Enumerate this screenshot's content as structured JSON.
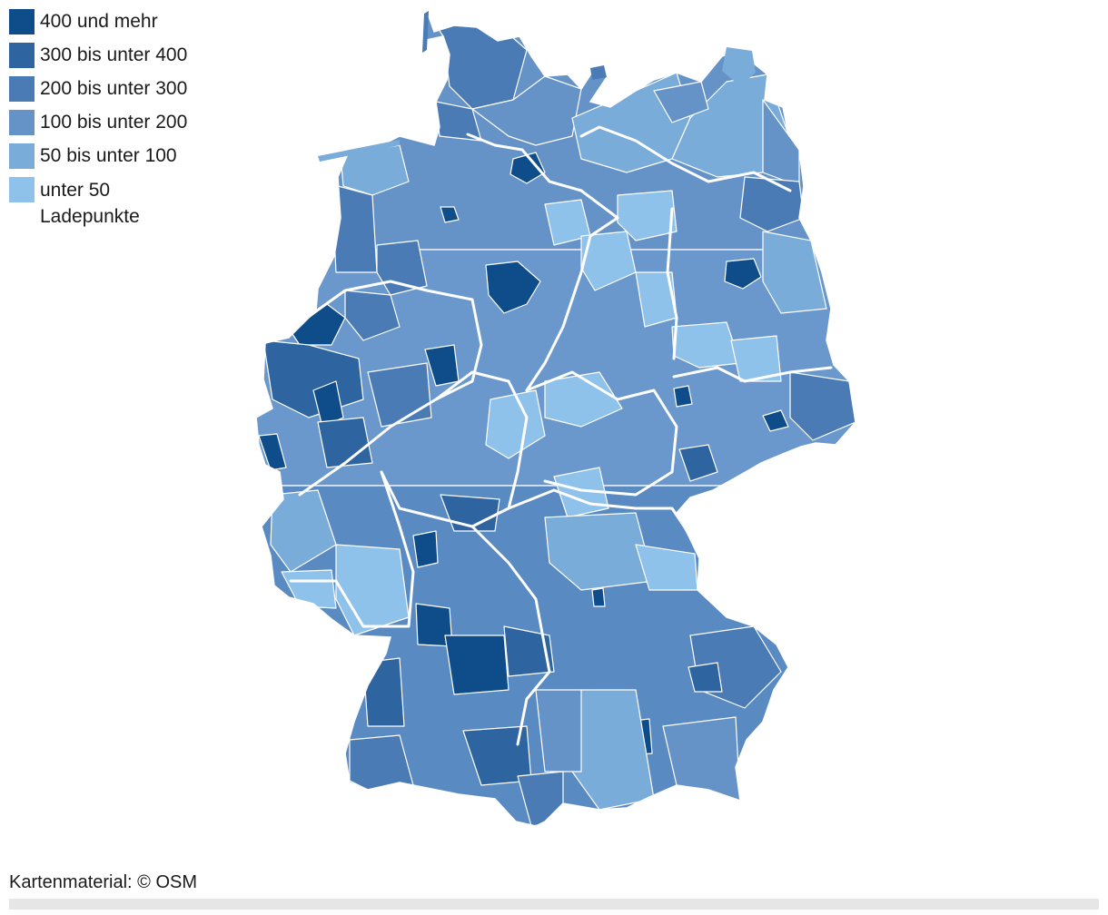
{
  "legend": {
    "items": [
      {
        "label": "400 und mehr",
        "color": "#0f4c8a"
      },
      {
        "label": "300 bis unter 400",
        "color": "#2e64a0"
      },
      {
        "label": "200 bis unter 300",
        "color": "#4a7bb5"
      },
      {
        "label": "100 bis unter 200",
        "color": "#6593c8"
      },
      {
        "label": "50 bis unter 100",
        "color": "#79acd9"
      },
      {
        "label": "unter 50",
        "color": "#8fc2ea"
      }
    ],
    "unit": "Ladepunkte"
  },
  "map": {
    "region": "Deutschland (Landkreise)",
    "border_color": "#ffffff"
  },
  "credit": "Kartenmaterial: © OSM"
}
